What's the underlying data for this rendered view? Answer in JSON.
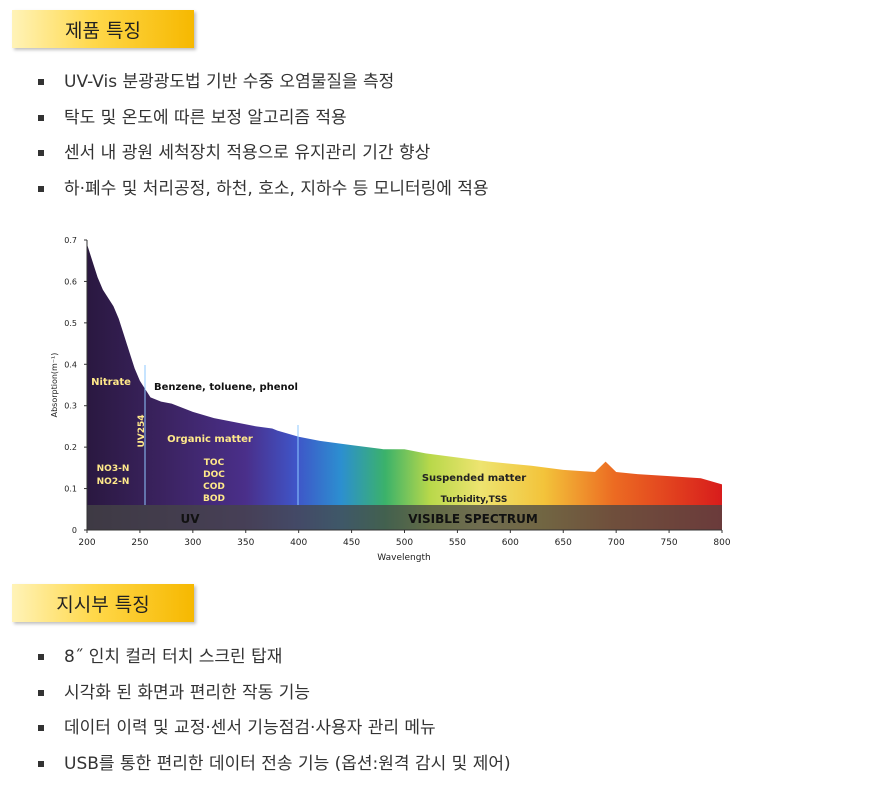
{
  "sections": [
    {
      "title": "제품 특징",
      "items": [
        "UV-Vis 분광광도법 기반 수중 오염물질을 측정",
        "탁도 및 온도에 따른 보정 알고리즘 적용",
        "센서 내 광원 세척장치 적용으로 유지관리 기간 향상",
        "하·폐수 및 처리공정, 하천, 호소, 지하수 등 모니터링에 적용"
      ]
    },
    {
      "title": "지시부 특징",
      "items": [
        "8˝ 인치 컬러 터치 스크린 탑재",
        "시각화 된 화면과 편리한 작동 기능",
        "데이터 이력 및 교정·센서 기능점검·사용자 관리 메뉴",
        "USB를 통한 편리한 데이터 전송 기능 (옵션:원격 감시 및 제어)"
      ]
    }
  ],
  "chart_data": {
    "type": "area",
    "x_label": "Wavelength",
    "y_label": "Absorption(m⁻¹)",
    "x": [
      200,
      205,
      210,
      215,
      220,
      225,
      230,
      235,
      240,
      245,
      250,
      255,
      260,
      270,
      280,
      290,
      300,
      320,
      340,
      360,
      375,
      380,
      400,
      420,
      450,
      480,
      500,
      520,
      550,
      580,
      600,
      620,
      650,
      680,
      690,
      700,
      720,
      750,
      780,
      800
    ],
    "values": [
      0.69,
      0.65,
      0.61,
      0.58,
      0.56,
      0.54,
      0.51,
      0.47,
      0.43,
      0.39,
      0.36,
      0.34,
      0.32,
      0.31,
      0.305,
      0.295,
      0.285,
      0.27,
      0.26,
      0.25,
      0.245,
      0.24,
      0.225,
      0.215,
      0.205,
      0.195,
      0.195,
      0.185,
      0.175,
      0.165,
      0.16,
      0.155,
      0.145,
      0.14,
      0.165,
      0.14,
      0.135,
      0.13,
      0.125,
      0.11
    ],
    "xlim": [
      200,
      800
    ],
    "xticks": [
      200,
      250,
      300,
      350,
      400,
      450,
      500,
      550,
      600,
      650,
      700,
      750,
      800
    ],
    "ylim": [
      0,
      0.7
    ],
    "yticks": [
      0,
      0.1,
      0.2,
      0.3,
      0.4,
      0.5,
      0.6,
      0.7
    ],
    "annotations": [
      "Nitrate",
      "Benzene, toluene, phenol",
      "UV254",
      "Organic matter",
      "NO3-N",
      "NO2-N",
      "TOC",
      "DOC",
      "COD",
      "BOD",
      "Suspended matter",
      "Turbidity,TSS",
      "UV",
      "VISIBLE SPECTRUM"
    ]
  }
}
